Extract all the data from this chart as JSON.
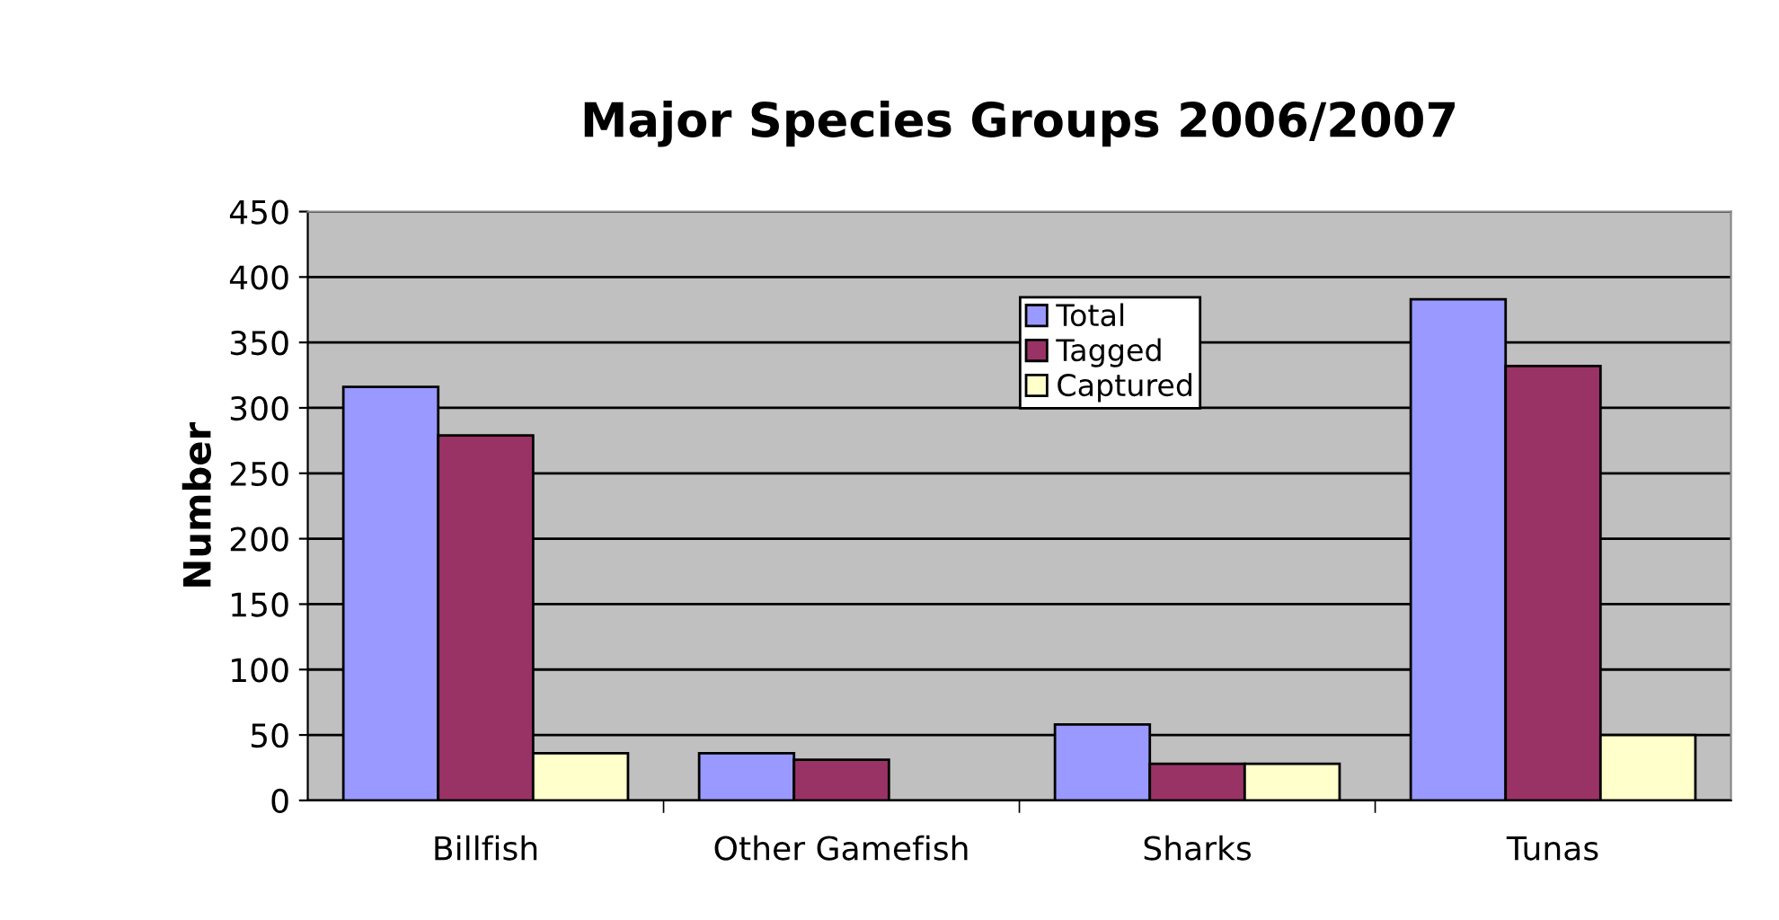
{
  "chart_data": {
    "type": "bar",
    "title": "Major Species Groups 2006/2007",
    "ylabel": "Number",
    "categories": [
      "Billfish",
      "Other Gamefish",
      "Sharks",
      "Tunas"
    ],
    "series": [
      {
        "name": "Total",
        "color": "#9999ff",
        "values": [
          316,
          36,
          58,
          383
        ]
      },
      {
        "name": "Tagged",
        "color": "#993366",
        "values": [
          279,
          31,
          28,
          332
        ]
      },
      {
        "name": "Captured",
        "color": "#ffffcc",
        "values": [
          36,
          null,
          28,
          50
        ]
      }
    ],
    "ylim": [
      0,
      450
    ],
    "yticks": [
      0,
      50,
      100,
      150,
      200,
      250,
      300,
      350,
      400,
      450
    ],
    "grid": "y",
    "legend": "top right"
  }
}
